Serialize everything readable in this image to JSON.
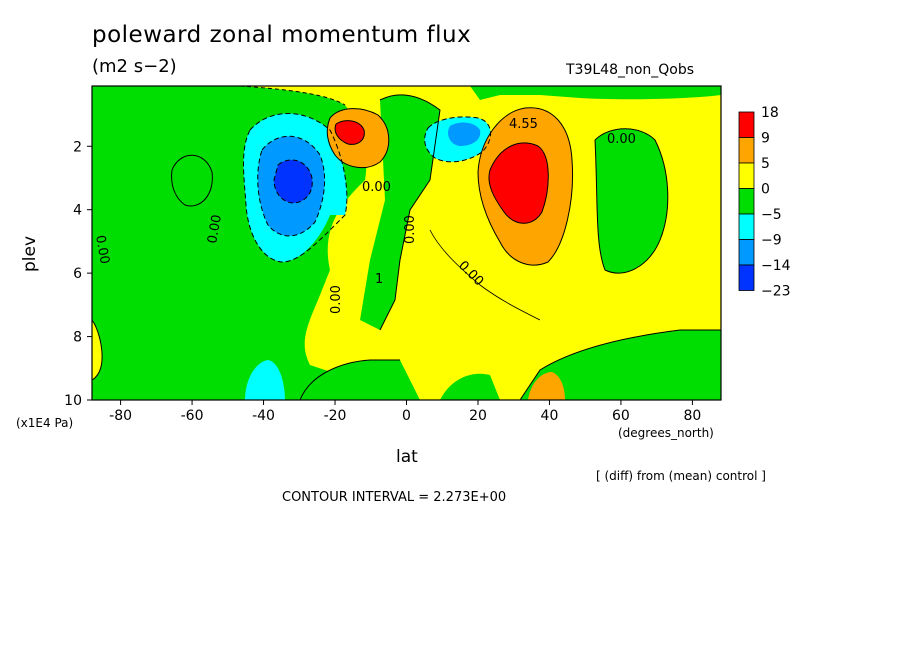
{
  "chart_data": {
    "type": "contour",
    "title": "poleward zonal momentum flux",
    "units": "(m2 s−2)",
    "run_label": "T39L48_non_Qobs",
    "comparison_note": "[ (diff) from (mean) control ]",
    "contour_interval": "CONTOUR INTERVAL = 2.273E+00",
    "xlabel": "lat",
    "xunits": "(degrees_north)",
    "ylabel": "plev",
    "yunits": "(x1E4 Pa)",
    "xlim": [
      -88,
      88
    ],
    "ylim": [
      10,
      0.1
    ],
    "xticks": [
      -80,
      -60,
      -40,
      -20,
      0,
      20,
      40,
      60,
      80
    ],
    "yticks": [
      2,
      4,
      6,
      8,
      10
    ],
    "colorbar": {
      "levels": [
        "18",
        "9",
        "5",
        "0",
        "−5",
        "−9",
        "−14",
        "−23"
      ],
      "colors": [
        "#ff0000",
        "#ffa500",
        "#ffff00",
        "#00dd00",
        "#00ffff",
        "#0099ff",
        "#0033ff"
      ]
    },
    "contour_labels": [
      "0.00",
      "0.00",
      "0.00",
      "0.00",
      "0.00",
      "0.00",
      "0.00",
      "4.55",
      "1"
    ],
    "features": [
      {
        "name": "southern negative core",
        "lat": -33,
        "plev": 3.0,
        "value": -18
      },
      {
        "name": "southern positive core",
        "lat": -15,
        "plev": 1.7,
        "value": 18
      },
      {
        "name": "northern negative core",
        "lat": 16,
        "plev": 1.8,
        "value": -14
      },
      {
        "name": "northern positive core",
        "lat": 32,
        "plev": 3.1,
        "value": 18
      }
    ]
  }
}
